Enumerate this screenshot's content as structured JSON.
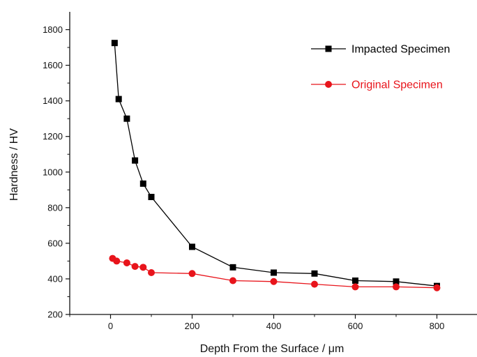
{
  "chart_data": {
    "type": "line",
    "title": "",
    "xlabel": "Depth From the Surface / μm",
    "ylabel": "Hardness / HV",
    "xlim": [
      -100,
      900
    ],
    "ylim": [
      200,
      1900
    ],
    "xticks": [
      0,
      200,
      400,
      600,
      800
    ],
    "yticks": [
      200,
      400,
      600,
      800,
      1000,
      1200,
      1400,
      1600,
      1800
    ],
    "grid": false,
    "legend_position": "top-right",
    "series": [
      {
        "name": "Impacted Specimen",
        "color": "#000000",
        "marker": "square",
        "x": [
          10,
          20,
          40,
          60,
          80,
          100,
          200,
          300,
          400,
          500,
          600,
          700,
          800
        ],
        "y": [
          1725,
          1410,
          1300,
          1065,
          935,
          860,
          580,
          465,
          435,
          430,
          390,
          385,
          360
        ]
      },
      {
        "name": "Original Specimen",
        "color": "#e8141b",
        "marker": "circle",
        "x": [
          5,
          15,
          40,
          60,
          80,
          100,
          200,
          300,
          400,
          500,
          600,
          700,
          800
        ],
        "y": [
          515,
          500,
          490,
          470,
          465,
          435,
          430,
          390,
          385,
          370,
          355,
          355,
          350
        ]
      }
    ]
  }
}
